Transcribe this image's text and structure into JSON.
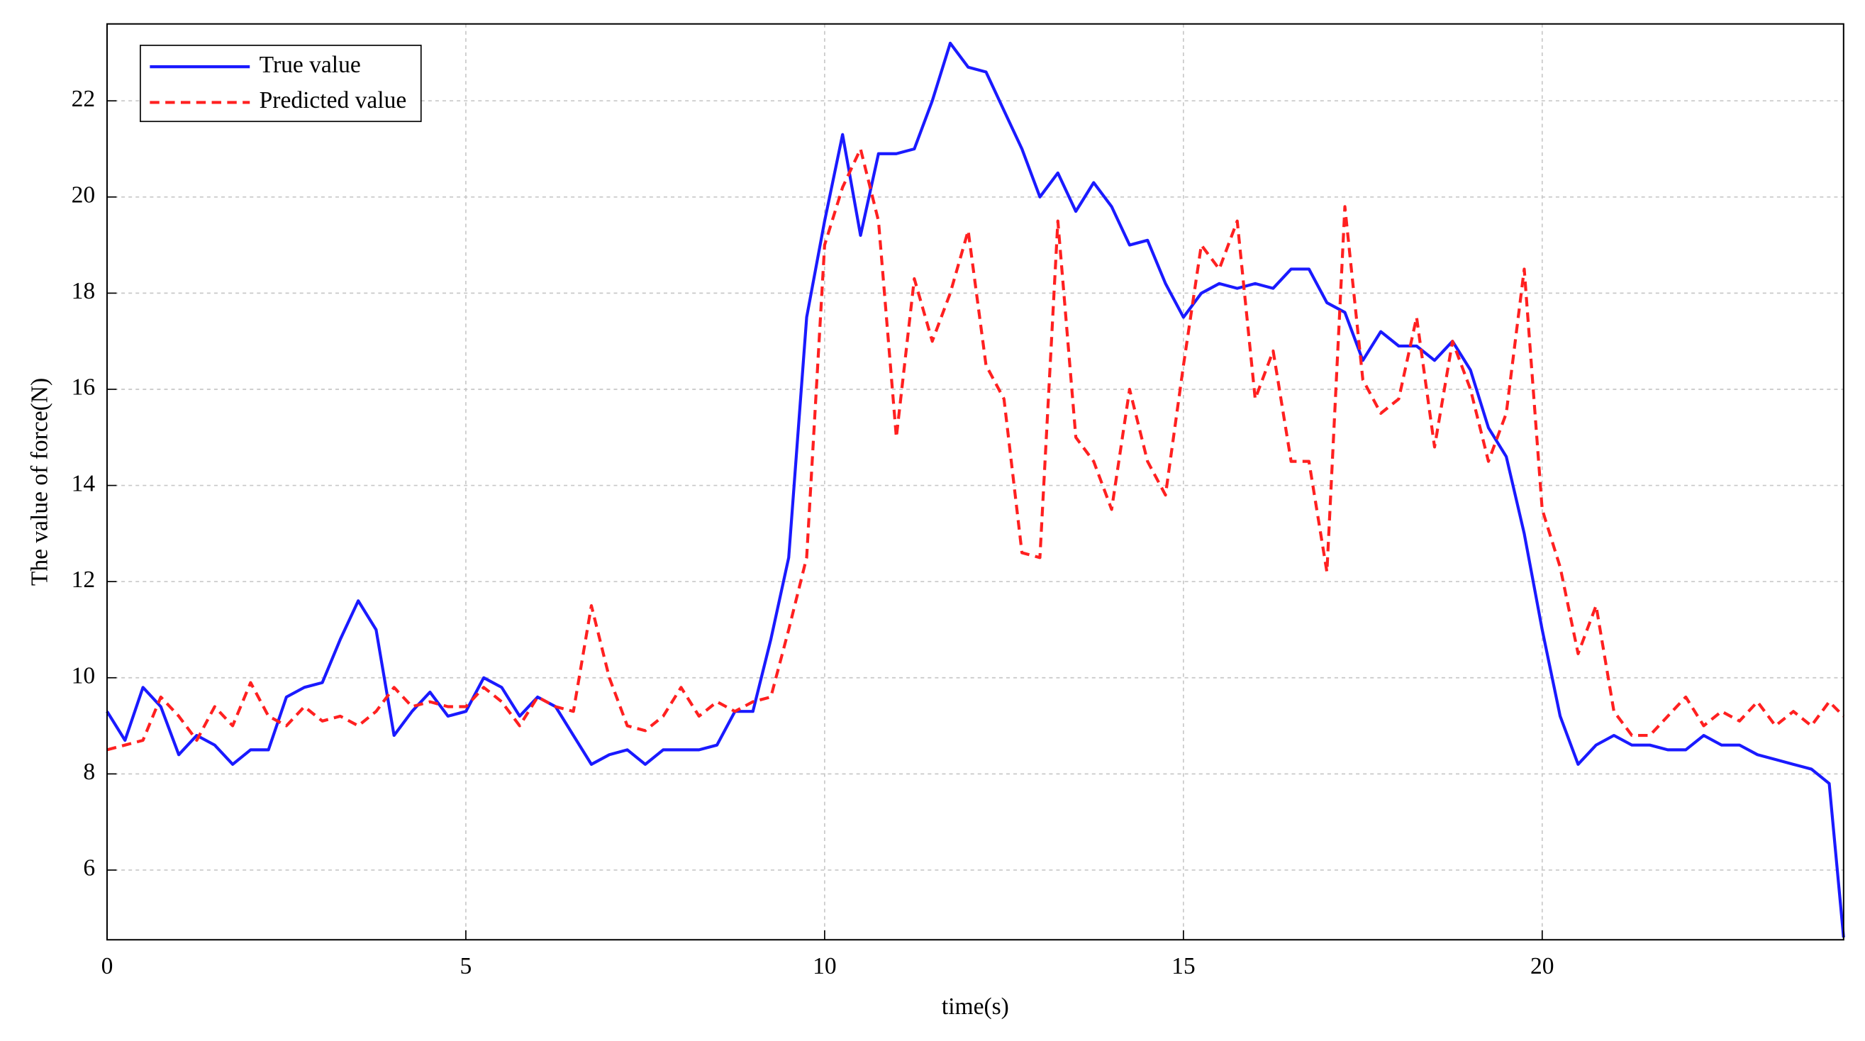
{
  "chart_data": {
    "type": "line",
    "xlabel": "time(s)",
    "ylabel": "The value of force(N)",
    "x": [
      0,
      0.25,
      0.5,
      0.75,
      1,
      1.25,
      1.5,
      1.75,
      2,
      2.25,
      2.5,
      2.75,
      3,
      3.25,
      3.5,
      3.75,
      4,
      4.25,
      4.5,
      4.75,
      5,
      5.25,
      5.5,
      5.75,
      6,
      6.25,
      6.5,
      6.75,
      7,
      7.25,
      7.5,
      7.75,
      8,
      8.25,
      8.5,
      8.75,
      9,
      9.25,
      9.5,
      9.75,
      10,
      10.25,
      10.5,
      10.75,
      11,
      11.25,
      11.5,
      11.75,
      12,
      12.25,
      12.5,
      12.75,
      13,
      13.25,
      13.5,
      13.75,
      14,
      14.25,
      14.5,
      14.75,
      15,
      15.25,
      15.5,
      15.75,
      16,
      16.25,
      16.5,
      16.75,
      17,
      17.25,
      17.5,
      17.75,
      18,
      18.25,
      18.5,
      18.75,
      19,
      19.25,
      19.5,
      19.75,
      20,
      20.25,
      20.5,
      20.75,
      21,
      21.25,
      21.5,
      21.75,
      22,
      22.25,
      22.5,
      22.75,
      23,
      23.25,
      23.5,
      23.75,
      24,
      24.2
    ],
    "series": [
      {
        "name": "True value",
        "color": "#1a1aff",
        "dash": false,
        "values": [
          9.3,
          8.7,
          9.8,
          9.4,
          8.4,
          8.8,
          8.6,
          8.2,
          8.5,
          8.5,
          9.6,
          9.8,
          9.9,
          10.8,
          11.6,
          11.0,
          8.8,
          9.3,
          9.7,
          9.2,
          9.3,
          10.0,
          9.8,
          9.2,
          9.6,
          9.4,
          8.8,
          8.2,
          8.4,
          8.5,
          8.2,
          8.5,
          8.5,
          8.5,
          8.6,
          9.3,
          9.3,
          10.8,
          12.5,
          17.5,
          19.5,
          21.3,
          19.2,
          20.9,
          20.9,
          21.0,
          22.0,
          23.2,
          22.7,
          22.6,
          21.8,
          21.0,
          20.0,
          20.5,
          19.7,
          20.3,
          19.8,
          19.0,
          19.1,
          18.2,
          17.5,
          18.0,
          18.2,
          18.1,
          18.2,
          18.1,
          18.5,
          18.5,
          17.8,
          17.6,
          16.6,
          17.2,
          16.9,
          16.9,
          16.6,
          17.0,
          16.4,
          15.2,
          14.6,
          13.0,
          11.0,
          9.2,
          8.2,
          8.6,
          8.8,
          8.6,
          8.6,
          8.5,
          8.5,
          8.8,
          8.6,
          8.6,
          8.4,
          8.3,
          8.2,
          8.1,
          7.8,
          4.6
        ]
      },
      {
        "name": "Predicted value",
        "color": "#ff2020",
        "dash": true,
        "values": [
          8.5,
          8.6,
          8.7,
          9.6,
          9.2,
          8.7,
          9.4,
          9.0,
          9.9,
          9.2,
          9.0,
          9.4,
          9.1,
          9.2,
          9.0,
          9.3,
          9.8,
          9.4,
          9.5,
          9.4,
          9.4,
          9.8,
          9.5,
          9.0,
          9.6,
          9.4,
          9.3,
          11.5,
          10.0,
          9.0,
          8.9,
          9.2,
          9.8,
          9.2,
          9.5,
          9.3,
          9.5,
          9.6,
          11.0,
          12.5,
          19.0,
          20.2,
          21.0,
          19.5,
          15.0,
          18.3,
          17.0,
          18.0,
          19.3,
          16.5,
          15.8,
          12.6,
          12.5,
          19.5,
          15.0,
          14.5,
          13.5,
          16.0,
          14.5,
          13.8,
          16.5,
          19.0,
          18.5,
          19.5,
          15.8,
          16.8,
          14.5,
          14.5,
          12.2,
          19.8,
          16.2,
          15.5,
          15.8,
          17.5,
          14.8,
          17.0,
          16.0,
          14.5,
          15.5,
          18.5,
          13.5,
          12.3,
          10.5,
          11.5,
          9.3,
          8.8,
          8.8,
          9.2,
          9.6,
          9.0,
          9.3,
          9.1,
          9.5,
          9.0,
          9.3,
          9.0,
          9.5,
          9.2
        ]
      }
    ],
    "xlim": [
      0,
      24.2
    ],
    "ylim": [
      4.55,
      23.6
    ],
    "xticks": [
      0,
      5,
      10,
      15,
      20
    ],
    "yticks": [
      6,
      8,
      10,
      12,
      14,
      16,
      18,
      20,
      22
    ],
    "grid": true,
    "legend": "upper left"
  }
}
